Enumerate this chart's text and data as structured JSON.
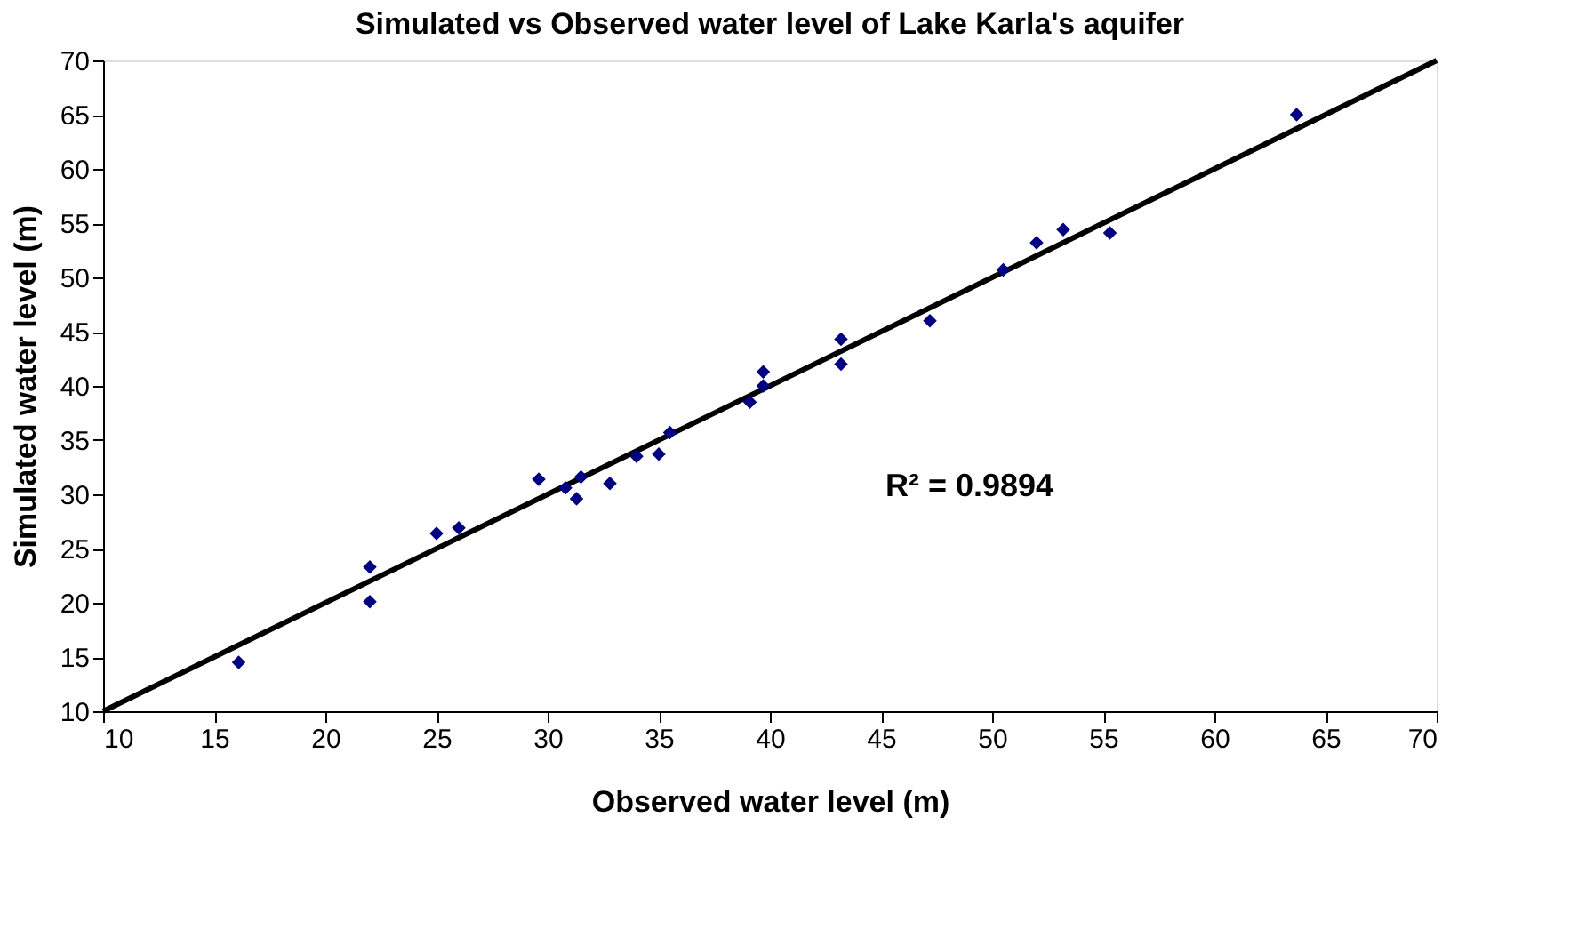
{
  "chart_data": {
    "type": "scatter",
    "title": "Simulated vs Observed water level of Lake Karla's aquifer",
    "xlabel": "Observed water level (m)",
    "ylabel": "Simulated water level (m)",
    "xlim": [
      10,
      70
    ],
    "xticks": [
      10,
      15,
      20,
      25,
      30,
      35,
      40,
      45,
      50,
      55,
      60,
      65,
      70
    ],
    "ylim": [
      10,
      70
    ],
    "yticks": [
      10,
      15,
      20,
      25,
      30,
      35,
      40,
      45,
      50,
      55,
      60,
      65,
      70
    ],
    "grid": false,
    "annotations": [
      "R² = 0.9894"
    ],
    "series": [
      {
        "type": "scatter",
        "marker": "diamond",
        "color": "#000080",
        "x": [
          16.1,
          22,
          22,
          25,
          26,
          29.6,
          30.8,
          31.3,
          31.5,
          32.8,
          34,
          35,
          35.5,
          39.1,
          39.7,
          39.7,
          43.2,
          43.2,
          47.2,
          50.5,
          52,
          53.2,
          55.3,
          63.7
        ],
        "values": [
          14.5,
          23.3,
          20.1,
          26.4,
          26.9,
          31.4,
          30.6,
          29.6,
          31.6,
          31,
          33.5,
          33.7,
          35.7,
          38.5,
          40,
          41.3,
          44.3,
          42,
          46,
          50.7,
          53.2,
          54.4,
          54.1,
          65
        ]
      },
      {
        "type": "line",
        "color": "#000000",
        "x": [
          10,
          70
        ],
        "values": [
          10,
          70
        ]
      }
    ]
  }
}
